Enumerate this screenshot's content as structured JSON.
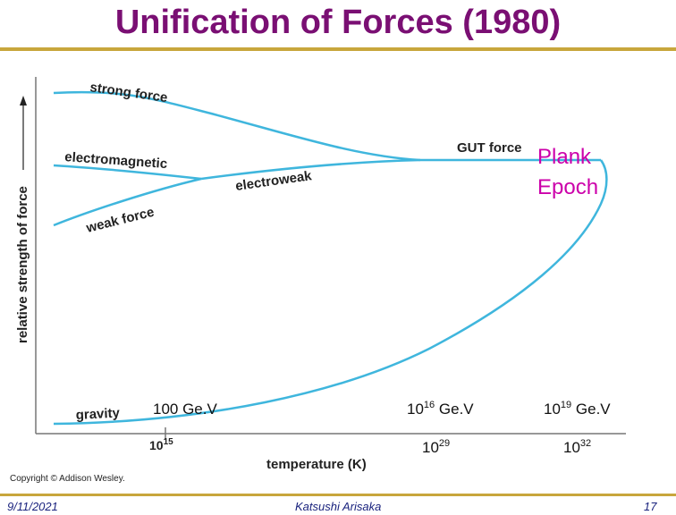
{
  "title": "Unification of Forces (1980)",
  "diagram": {
    "y_axis_label": "relative strength of force",
    "x_axis_label": "temperature (K)",
    "tick_label": "10^15",
    "labels": {
      "strong": "strong force",
      "electromagnetic": "electromagnetic",
      "weak": "weak force",
      "electroweak": "electroweak",
      "gut": "GUT force",
      "gravity": "gravity"
    },
    "plank_epoch": [
      "Plank",
      "Epoch"
    ],
    "energy_labels": {
      "e100": "100 Ge.V",
      "e16_base": "10",
      "e16_exp": "16",
      "e16_unit": " Ge.V",
      "e19_base": "10",
      "e19_exp": "19",
      "e19_unit": " Ge.V"
    },
    "temp_labels": {
      "t15_base": "10",
      "t15_exp": "15",
      "t29_base": "10",
      "t29_exp": "29",
      "t32_base": "10",
      "t32_exp": "32"
    },
    "copyright": "Copyright © Addison Wesley.",
    "curve_color": "#3fb6dd",
    "plank_color": "#cc00aa"
  },
  "footer": {
    "date": "9/11/2021",
    "author": "Katsushi Arisaka",
    "page": "17"
  }
}
